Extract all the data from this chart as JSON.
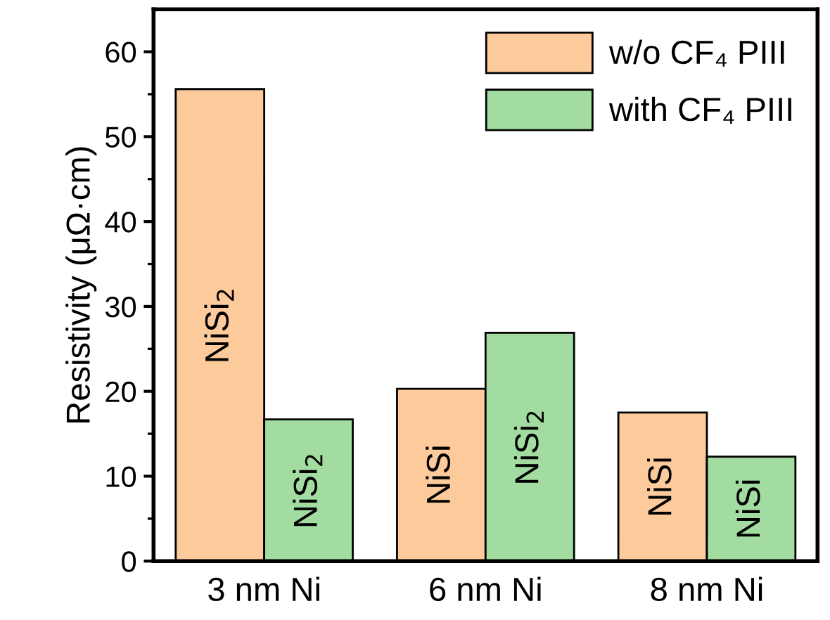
{
  "chart_data": {
    "type": "bar",
    "ylabel": "Resistivity (μΩ·cm)",
    "categories": [
      "3 nm Ni",
      "6 nm Ni",
      "8 nm Ni"
    ],
    "series": [
      {
        "name": "w/o CF₄ PIII",
        "color": "#fdca9c",
        "values": [
          55.6,
          20.3,
          17.5
        ]
      },
      {
        "name": "with CF₄ PIII",
        "color": "#a2dca0",
        "values": [
          16.7,
          26.9,
          12.3
        ]
      }
    ],
    "ylim": [
      0,
      65
    ],
    "yticks": [
      0,
      {
        "value": 5,
        "label": null
      },
      10,
      {
        "value": 15,
        "label": null
      },
      20,
      {
        "value": 25,
        "label": null
      },
      30,
      {
        "value": 35,
        "label": null
      },
      40,
      {
        "value": 45,
        "label": null
      },
      50,
      {
        "value": 55,
        "label": null
      },
      60
    ],
    "annotations": [
      "NiSi$_{2}$",
      "NiSi$_{2}$",
      "NiSi",
      "NiSi$_{2}$",
      "NiSi",
      "NiSi"
    ],
    "legend": "top right",
    "grid": false
  }
}
